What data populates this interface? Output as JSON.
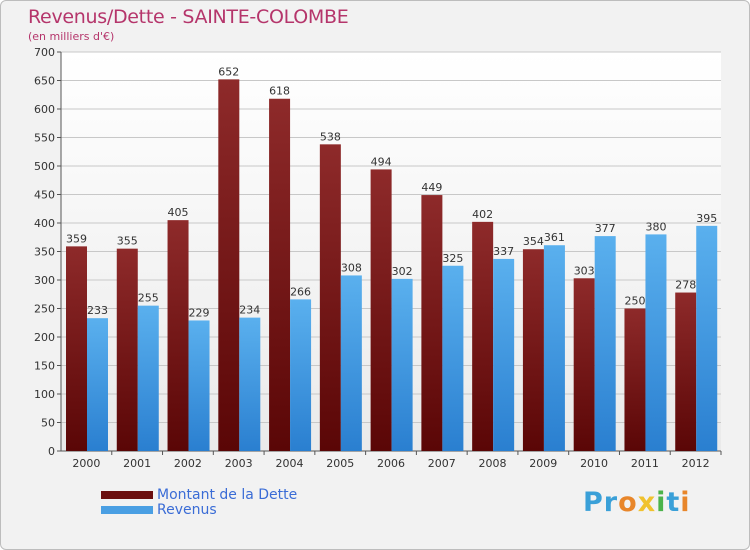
{
  "chart_data": {
    "type": "bar",
    "title": "Revenus/Dette - SAINTE-COLOMBE",
    "subtitle": "(en milliers d'€)",
    "categories": [
      "2000",
      "2001",
      "2002",
      "2003",
      "2004",
      "2005",
      "2006",
      "2007",
      "2008",
      "2009",
      "2010",
      "2011",
      "2012"
    ],
    "series": [
      {
        "name": "Montant de la Dette",
        "color": "#7a1c1c",
        "values": [
          359,
          355,
          405,
          652,
          618,
          538,
          494,
          449,
          402,
          354,
          303,
          250,
          278
        ]
      },
      {
        "name": "Revenus",
        "color": "#4a9fe3",
        "values": [
          233,
          255,
          229,
          234,
          266,
          308,
          302,
          325,
          337,
          361,
          377,
          380,
          395
        ]
      }
    ],
    "ylim": [
      0,
      700
    ],
    "yticks": [
      0,
      50,
      100,
      150,
      200,
      250,
      300,
      350,
      400,
      450,
      500,
      550,
      600,
      650,
      700
    ],
    "grid": true
  },
  "legend": {
    "items": [
      {
        "label": "Montant de la Dette",
        "color": "#6b0f0f"
      },
      {
        "label": "Revenus",
        "color": "#4a9fe3"
      }
    ]
  },
  "brand": {
    "letters": [
      "P",
      "r",
      "o",
      "x",
      "i",
      "t",
      "i"
    ],
    "colors": [
      "#3aa0d8",
      "#3aa0d8",
      "#e8862a",
      "#f0c22e",
      "#4bb34b",
      "#3aa0d8",
      "#e8862a"
    ]
  }
}
